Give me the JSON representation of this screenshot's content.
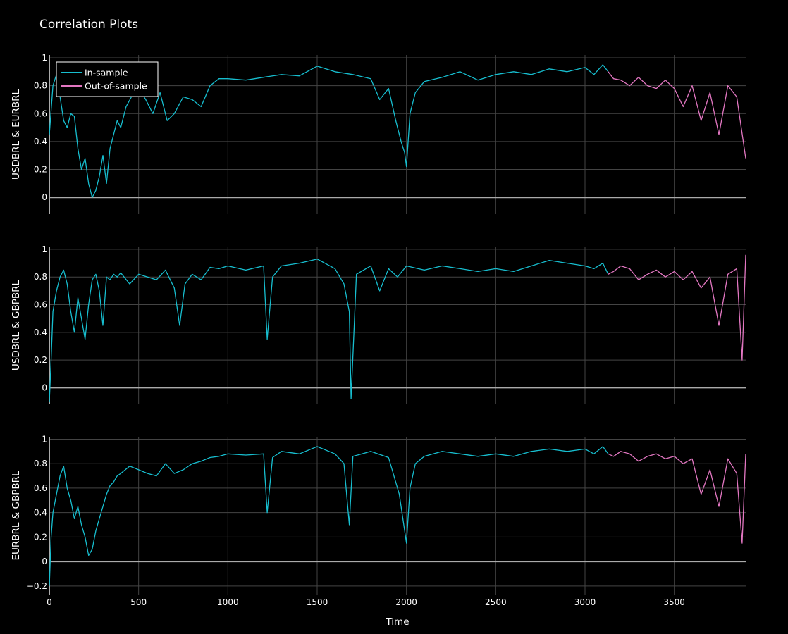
{
  "chart_data": {
    "type": "line",
    "title": "Correlation Plots",
    "xlabel": "Time",
    "xlim": [
      0,
      3900
    ],
    "xticks": [
      0,
      500,
      1000,
      1500,
      2000,
      2500,
      3000,
      3500
    ],
    "split_x": 3130,
    "grid": true,
    "legend": {
      "placement": "top-left",
      "entries": [
        "In-sample",
        "Out-of-sample"
      ]
    },
    "colors": {
      "in_sample": "#17becf",
      "out_of_sample": "#e377c2",
      "grid": "#444444",
      "zero_line": "#aaaaaa",
      "background": "#000000"
    },
    "series": [
      {
        "name": "In-sample",
        "color": "#17becf"
      },
      {
        "name": "Out-of-sample",
        "color": "#e377c2"
      }
    ],
    "panels": [
      {
        "ylabel": "USDBRL & EURBRL",
        "ylim": [
          -0.12,
          1.02
        ],
        "yticks": [
          0,
          0.2,
          0.4,
          0.6,
          0.8,
          1
        ],
        "ytick_labels": [
          "0",
          "0.2",
          "0.4",
          "0.6",
          "0.8",
          "1"
        ],
        "x": [
          0,
          20,
          40,
          60,
          80,
          100,
          120,
          140,
          160,
          180,
          200,
          220,
          240,
          260,
          280,
          300,
          320,
          340,
          360,
          380,
          400,
          430,
          460,
          500,
          540,
          580,
          620,
          660,
          700,
          750,
          800,
          850,
          900,
          950,
          1000,
          1100,
          1200,
          1300,
          1400,
          1500,
          1600,
          1700,
          1800,
          1850,
          1900,
          1940,
          1970,
          1990,
          2000,
          2020,
          2050,
          2100,
          2200,
          2300,
          2400,
          2500,
          2600,
          2700,
          2800,
          2900,
          3000,
          3050,
          3100,
          3130,
          3160,
          3200,
          3250,
          3300,
          3350,
          3400,
          3450,
          3500,
          3550,
          3600,
          3650,
          3700,
          3750,
          3800,
          3850,
          3900
        ],
        "y": [
          0.45,
          0.8,
          0.88,
          0.72,
          0.55,
          0.5,
          0.6,
          0.58,
          0.35,
          0.2,
          0.28,
          0.1,
          0.0,
          0.05,
          0.15,
          0.3,
          0.1,
          0.35,
          0.45,
          0.55,
          0.5,
          0.65,
          0.72,
          0.78,
          0.7,
          0.6,
          0.75,
          0.55,
          0.6,
          0.72,
          0.7,
          0.65,
          0.8,
          0.85,
          0.85,
          0.84,
          0.86,
          0.88,
          0.87,
          0.94,
          0.9,
          0.88,
          0.85,
          0.7,
          0.78,
          0.55,
          0.4,
          0.32,
          0.22,
          0.6,
          0.75,
          0.83,
          0.86,
          0.9,
          0.84,
          0.88,
          0.9,
          0.88,
          0.92,
          0.9,
          0.93,
          0.88,
          0.95,
          0.9,
          0.85,
          0.84,
          0.8,
          0.86,
          0.8,
          0.78,
          0.84,
          0.78,
          0.65,
          0.8,
          0.55,
          0.75,
          0.45,
          0.8,
          0.72,
          0.28
        ]
      },
      {
        "ylabel": "USDBRL & GBPBRL",
        "ylim": [
          -0.12,
          1.02
        ],
        "yticks": [
          0,
          0.2,
          0.4,
          0.6,
          0.8,
          1
        ],
        "ytick_labels": [
          "0",
          "0.2",
          "0.4",
          "0.6",
          "0.8",
          "1"
        ],
        "x": [
          0,
          10,
          20,
          40,
          60,
          80,
          100,
          120,
          140,
          160,
          180,
          200,
          220,
          240,
          260,
          280,
          300,
          320,
          340,
          360,
          380,
          400,
          450,
          500,
          550,
          600,
          650,
          700,
          730,
          760,
          800,
          850,
          900,
          950,
          1000,
          1100,
          1200,
          1220,
          1250,
          1300,
          1400,
          1500,
          1600,
          1650,
          1680,
          1690,
          1720,
          1800,
          1850,
          1900,
          1950,
          2000,
          2100,
          2200,
          2300,
          2400,
          2500,
          2600,
          2700,
          2800,
          2900,
          3000,
          3050,
          3100,
          3130,
          3160,
          3200,
          3250,
          3300,
          3350,
          3400,
          3450,
          3500,
          3550,
          3600,
          3650,
          3700,
          3750,
          3800,
          3850,
          3880,
          3900
        ],
        "y": [
          -0.1,
          0.2,
          0.55,
          0.7,
          0.8,
          0.85,
          0.75,
          0.55,
          0.4,
          0.65,
          0.5,
          0.35,
          0.6,
          0.78,
          0.82,
          0.7,
          0.45,
          0.8,
          0.78,
          0.82,
          0.8,
          0.83,
          0.75,
          0.82,
          0.8,
          0.78,
          0.85,
          0.72,
          0.45,
          0.75,
          0.82,
          0.78,
          0.87,
          0.86,
          0.88,
          0.85,
          0.88,
          0.35,
          0.8,
          0.88,
          0.9,
          0.93,
          0.86,
          0.75,
          0.55,
          -0.08,
          0.82,
          0.88,
          0.7,
          0.86,
          0.8,
          0.88,
          0.85,
          0.88,
          0.86,
          0.84,
          0.86,
          0.84,
          0.88,
          0.92,
          0.9,
          0.88,
          0.86,
          0.9,
          0.82,
          0.84,
          0.88,
          0.86,
          0.78,
          0.82,
          0.85,
          0.8,
          0.84,
          0.78,
          0.84,
          0.72,
          0.8,
          0.45,
          0.82,
          0.86,
          0.2,
          0.96
        ]
      },
      {
        "ylabel": "EURBRL & GBPBRL",
        "ylim": [
          -0.27,
          1.02
        ],
        "yticks": [
          -0.2,
          0,
          0.2,
          0.4,
          0.6,
          0.8,
          1
        ],
        "ytick_labels": [
          "−0.2",
          "0",
          "0.2",
          "0.4",
          "0.6",
          "0.8",
          "1"
        ],
        "x": [
          0,
          10,
          20,
          40,
          60,
          80,
          100,
          120,
          140,
          160,
          180,
          200,
          220,
          240,
          260,
          280,
          300,
          320,
          340,
          360,
          380,
          400,
          450,
          500,
          550,
          600,
          650,
          700,
          750,
          800,
          850,
          900,
          950,
          1000,
          1100,
          1200,
          1220,
          1250,
          1300,
          1400,
          1500,
          1600,
          1650,
          1680,
          1700,
          1800,
          1900,
          1960,
          1980,
          2000,
          2020,
          2050,
          2100,
          2200,
          2300,
          2400,
          2500,
          2600,
          2700,
          2800,
          2900,
          3000,
          3050,
          3100,
          3130,
          3160,
          3200,
          3250,
          3300,
          3350,
          3400,
          3450,
          3500,
          3550,
          3600,
          3650,
          3700,
          3750,
          3800,
          3850,
          3880,
          3900
        ],
        "y": [
          -0.2,
          0.2,
          0.4,
          0.55,
          0.7,
          0.78,
          0.6,
          0.5,
          0.35,
          0.45,
          0.3,
          0.2,
          0.05,
          0.1,
          0.25,
          0.35,
          0.45,
          0.55,
          0.62,
          0.65,
          0.7,
          0.72,
          0.78,
          0.75,
          0.72,
          0.7,
          0.8,
          0.72,
          0.75,
          0.8,
          0.82,
          0.85,
          0.86,
          0.88,
          0.87,
          0.88,
          0.4,
          0.85,
          0.9,
          0.88,
          0.94,
          0.88,
          0.8,
          0.3,
          0.86,
          0.9,
          0.85,
          0.55,
          0.35,
          0.15,
          0.6,
          0.8,
          0.86,
          0.9,
          0.88,
          0.86,
          0.88,
          0.86,
          0.9,
          0.92,
          0.9,
          0.92,
          0.88,
          0.94,
          0.88,
          0.86,
          0.9,
          0.88,
          0.82,
          0.86,
          0.88,
          0.84,
          0.86,
          0.8,
          0.84,
          0.55,
          0.75,
          0.45,
          0.84,
          0.72,
          0.15,
          0.88
        ]
      }
    ]
  }
}
